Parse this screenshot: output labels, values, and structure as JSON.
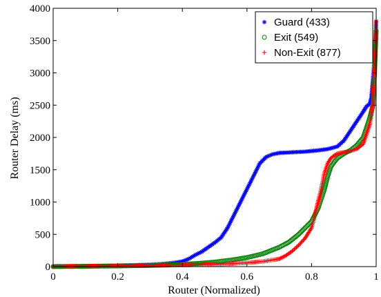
{
  "chart_data": {
    "type": "scatter",
    "xlabel": "Router (Normalized)",
    "ylabel": "Router Delay (ms)",
    "xlim": [
      0,
      1
    ],
    "ylim": [
      0,
      4000
    ],
    "x_ticks": [
      "0",
      "0.2",
      "0.4",
      "0.6",
      "0.8",
      "1"
    ],
    "y_ticks": [
      "0",
      "500",
      "1000",
      "1500",
      "2000",
      "2500",
      "3000",
      "3500",
      "4000"
    ],
    "grid": false,
    "legend_position": "top-right",
    "series": [
      {
        "name": "Guard (433)",
        "marker": "asterisk",
        "color": "#0000ff",
        "x": [
          0,
          0.05,
          0.1,
          0.15,
          0.2,
          0.25,
          0.3,
          0.33,
          0.36,
          0.38,
          0.4,
          0.42,
          0.44,
          0.46,
          0.48,
          0.5,
          0.52,
          0.54,
          0.56,
          0.58,
          0.6,
          0.62,
          0.64,
          0.66,
          0.68,
          0.7,
          0.74,
          0.78,
          0.82,
          0.85,
          0.88,
          0.9,
          0.92,
          0.94,
          0.96,
          0.97,
          0.98,
          0.985,
          0.99,
          0.995,
          0.998,
          1.0
        ],
        "y": [
          0,
          3,
          6,
          10,
          15,
          20,
          30,
          38,
          50,
          62,
          80,
          120,
          180,
          230,
          300,
          370,
          450,
          600,
          800,
          1000,
          1200,
          1400,
          1600,
          1700,
          1740,
          1760,
          1770,
          1780,
          1800,
          1820,
          1860,
          1950,
          2100,
          2250,
          2400,
          2480,
          2520,
          2620,
          2900,
          3200,
          3500,
          3800
        ]
      },
      {
        "name": "Exit (549)",
        "marker": "circle",
        "color": "#008000",
        "x": [
          0,
          0.1,
          0.2,
          0.3,
          0.35,
          0.4,
          0.45,
          0.5,
          0.55,
          0.6,
          0.65,
          0.7,
          0.73,
          0.76,
          0.78,
          0.8,
          0.82,
          0.84,
          0.85,
          0.86,
          0.87,
          0.88,
          0.9,
          0.92,
          0.94,
          0.96,
          0.98,
          0.99,
          0.995,
          1.0
        ],
        "y": [
          0,
          5,
          10,
          18,
          25,
          35,
          50,
          70,
          100,
          140,
          200,
          300,
          380,
          500,
          600,
          700,
          900,
          1200,
          1400,
          1550,
          1620,
          1680,
          1750,
          1800,
          1880,
          2000,
          2300,
          2500,
          3000,
          3650
        ]
      },
      {
        "name": "Non-Exit (877)",
        "marker": "plus",
        "color": "#ff0000",
        "x": [
          0,
          0.1,
          0.2,
          0.3,
          0.4,
          0.5,
          0.55,
          0.6,
          0.65,
          0.7,
          0.72,
          0.74,
          0.76,
          0.78,
          0.8,
          0.81,
          0.82,
          0.83,
          0.84,
          0.85,
          0.86,
          0.87,
          0.88,
          0.9,
          0.92,
          0.94,
          0.96,
          0.98,
          0.99,
          1.0
        ],
        "y": [
          5,
          8,
          12,
          18,
          25,
          35,
          45,
          60,
          80,
          120,
          170,
          240,
          330,
          440,
          600,
          800,
          1000,
          1200,
          1450,
          1600,
          1680,
          1720,
          1750,
          1770,
          1790,
          1820,
          1900,
          2200,
          2500,
          3800
        ]
      }
    ]
  }
}
